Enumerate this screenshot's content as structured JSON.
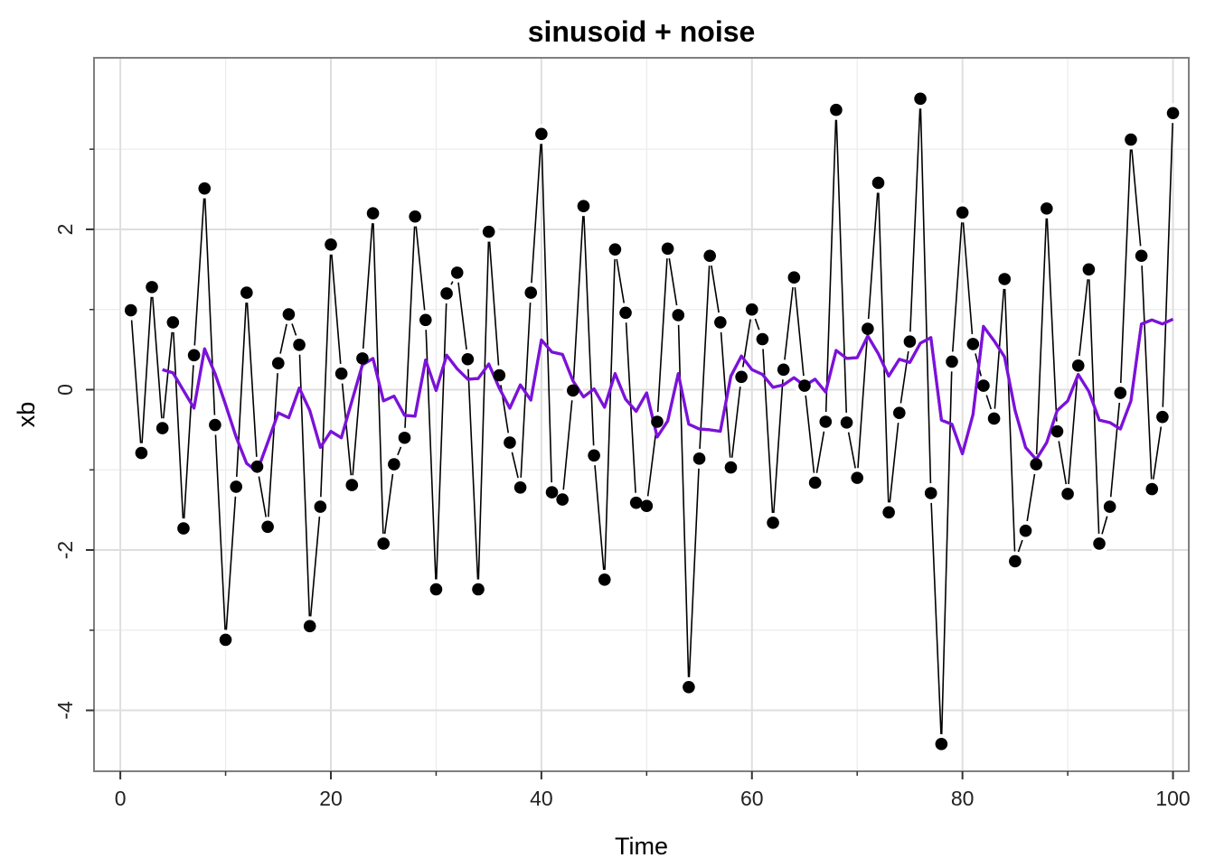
{
  "chart_data": {
    "type": "line",
    "title": "sinusoid + noise",
    "xlabel": "Time",
    "ylabel": "xb",
    "xlim": [
      -2.5,
      101.5
    ],
    "ylim": [
      -4.76,
      4.14
    ],
    "xticks": [
      0,
      20,
      40,
      60,
      80,
      100
    ],
    "yticks": [
      -4,
      -2,
      0,
      2
    ],
    "xtick_labels": [
      "0",
      "20",
      "40",
      "60",
      "80",
      "100"
    ],
    "ytick_labels": [
      "-4",
      "-2",
      "0",
      "2"
    ],
    "grid": true,
    "series": [
      {
        "style": "line+points",
        "color": "#000000",
        "x": [
          1,
          2,
          3,
          4,
          5,
          6,
          7,
          8,
          9,
          10,
          11,
          12,
          13,
          14,
          15,
          16,
          17,
          18,
          19,
          20,
          21,
          22,
          23,
          24,
          25,
          26,
          27,
          28,
          29,
          30,
          31,
          32,
          33,
          34,
          35,
          36,
          37,
          38,
          39,
          40,
          41,
          42,
          43,
          44,
          45,
          46,
          47,
          48,
          49,
          50,
          51,
          52,
          53,
          54,
          55,
          56,
          57,
          58,
          59,
          60,
          61,
          62,
          63,
          64,
          65,
          66,
          67,
          68,
          69,
          70,
          71,
          72,
          73,
          74,
          75,
          76,
          77,
          78,
          79,
          80,
          81,
          82,
          83,
          84,
          85,
          86,
          87,
          88,
          89,
          90,
          91,
          92,
          93,
          94,
          95,
          96,
          97,
          98,
          99,
          100
        ],
        "y": [
          0.99,
          -0.79,
          1.28,
          -0.48,
          0.84,
          -1.73,
          0.43,
          2.51,
          -0.44,
          -3.12,
          -1.21,
          1.21,
          -0.96,
          -1.71,
          0.33,
          0.94,
          0.56,
          -2.95,
          -1.46,
          1.81,
          0.2,
          -1.19,
          0.39,
          2.2,
          -1.92,
          -0.93,
          -0.6,
          2.16,
          0.87,
          -2.49,
          1.2,
          1.46,
          0.38,
          -2.49,
          1.97,
          0.18,
          -0.66,
          -1.22,
          1.21,
          3.19,
          -1.28,
          -1.37,
          -0.01,
          2.29,
          -0.82,
          -2.37,
          1.75,
          0.96,
          -1.41,
          -1.45,
          -0.4,
          1.76,
          0.93,
          -3.71,
          -0.86,
          1.67,
          0.84,
          -0.97,
          0.16,
          1.0,
          0.63,
          -1.66,
          0.25,
          1.4,
          0.05,
          -1.16,
          -0.4,
          3.49,
          -0.41,
          -1.1,
          0.76,
          2.58,
          -1.53,
          -0.29,
          0.6,
          3.63,
          -1.29,
          -4.42,
          0.35,
          2.21,
          0.57,
          0.05,
          -0.36,
          1.38,
          -2.14,
          -1.76,
          -0.93,
          2.26,
          -0.52,
          -1.3,
          0.3,
          1.5,
          -1.92,
          -1.46,
          -0.04,
          3.12,
          1.67,
          -1.24,
          -0.34,
          3.45
        ]
      },
      {
        "style": "line",
        "color": "#7b12d9",
        "x": [
          4,
          5,
          6,
          7,
          8,
          9,
          10,
          11,
          12,
          13,
          14,
          15,
          16,
          17,
          18,
          19,
          20,
          21,
          22,
          23,
          24,
          25,
          26,
          27,
          28,
          29,
          30,
          31,
          32,
          33,
          34,
          35,
          36,
          37,
          38,
          39,
          40,
          41,
          42,
          43,
          44,
          45,
          46,
          47,
          48,
          49,
          50,
          51,
          52,
          53,
          54,
          55,
          56,
          57,
          58,
          59,
          60,
          61,
          62,
          63,
          64,
          65,
          66,
          67,
          68,
          69,
          70,
          71,
          72,
          73,
          74,
          75,
          76,
          77,
          78,
          79,
          80,
          81,
          82,
          83,
          84,
          85,
          86,
          87,
          88,
          89,
          90,
          91,
          92,
          93,
          94,
          95,
          96,
          97,
          98,
          99,
          100
        ],
        "y": [
          0.25,
          0.21,
          -0.01,
          -0.23,
          0.51,
          0.2,
          -0.19,
          -0.59,
          -0.92,
          -1.02,
          -0.66,
          -0.29,
          -0.35,
          0.02,
          -0.26,
          -0.72,
          -0.52,
          -0.6,
          -0.14,
          0.31,
          0.39,
          -0.14,
          -0.08,
          -0.32,
          -0.33,
          0.37,
          -0.01,
          0.43,
          0.26,
          0.13,
          0.14,
          0.32,
          0.02,
          -0.23,
          0.06,
          -0.13,
          0.62,
          0.47,
          0.44,
          0.11,
          -0.09,
          0.01,
          -0.22,
          0.2,
          -0.12,
          -0.27,
          -0.04,
          -0.59,
          -0.39,
          0.2,
          -0.43,
          -0.49,
          -0.5,
          -0.52,
          0.17,
          0.42,
          0.25,
          0.19,
          0.03,
          0.06,
          0.15,
          0.05,
          0.13,
          -0.03,
          0.49,
          0.39,
          0.4,
          0.67,
          0.45,
          0.17,
          0.38,
          0.34,
          0.58,
          0.65,
          -0.38,
          -0.43,
          -0.8,
          -0.31,
          0.79,
          0.61,
          0.41,
          -0.26,
          -0.72,
          -0.87,
          -0.66,
          -0.26,
          -0.14,
          0.19,
          -0.02,
          -0.38,
          -0.41,
          -0.49,
          -0.14,
          0.82,
          0.87,
          0.82,
          0.88
        ]
      }
    ]
  }
}
